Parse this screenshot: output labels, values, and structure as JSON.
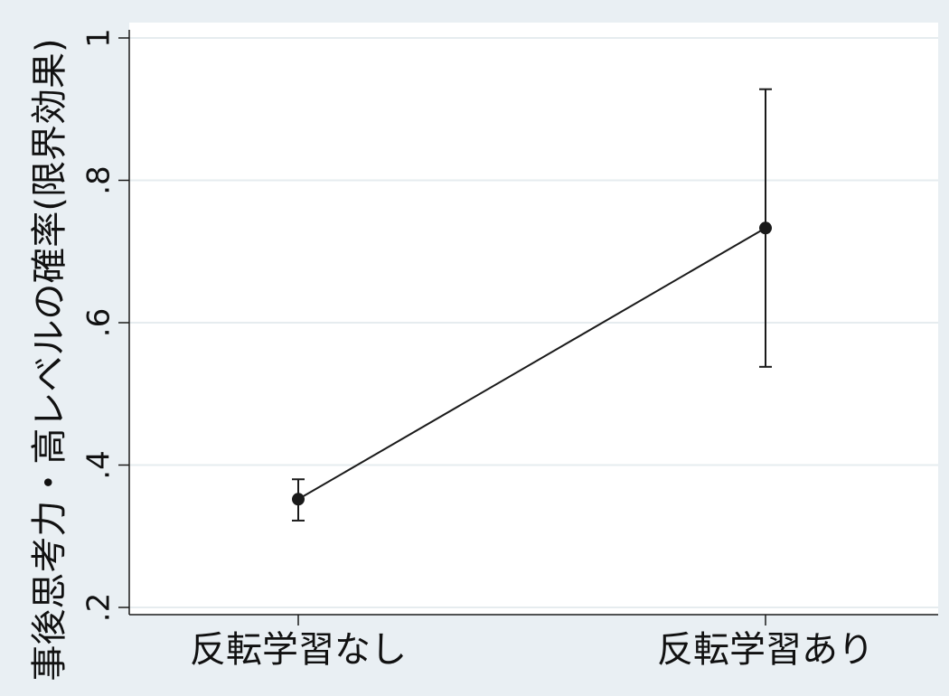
{
  "chart_data": {
    "type": "line",
    "title": "",
    "xlabel": "",
    "ylabel": "事後思考力・高レベルの確率(限界効果)",
    "categories": [
      "反転学習なし",
      "反転学習あり"
    ],
    "series": [
      {
        "values": [
          0.352,
          0.733
        ],
        "ci_lower": [
          0.322,
          0.538
        ],
        "ci_upper": [
          0.38,
          0.928
        ]
      }
    ],
    "ylim": [
      0.2,
      1.0
    ],
    "yticks": [
      0.2,
      0.4,
      0.6,
      0.8,
      1.0
    ],
    "ytick_labels": [
      ".2",
      ".4",
      ".6",
      ".8",
      "1"
    ],
    "grid": true,
    "colors": {
      "background": "#e9eff3",
      "plot_background": "#ffffff",
      "grid": "#e6ecef",
      "line": "#1a1a1a"
    }
  }
}
